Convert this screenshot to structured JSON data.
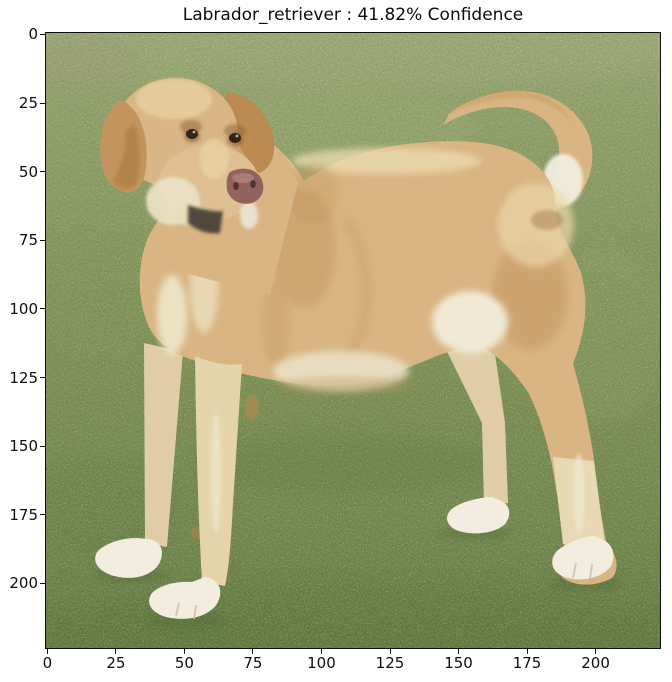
{
  "figure": {
    "title": "Labrador_retriever : 41.82% Confidence"
  },
  "classification": {
    "label": "Labrador_retriever",
    "confidence_percent": "41.82"
  },
  "axes": {
    "x_tick_labels": [
      "0",
      "25",
      "50",
      "75",
      "100",
      "125",
      "150",
      "175",
      "200"
    ],
    "y_tick_labels": [
      "0",
      "25",
      "50",
      "75",
      "100",
      "125",
      "150",
      "175",
      "200"
    ],
    "x_tick_values": [
      0,
      25,
      50,
      75,
      100,
      125,
      150,
      175,
      200
    ],
    "y_tick_values": [
      0,
      25,
      50,
      75,
      100,
      125,
      150,
      175,
      200
    ],
    "data_extent": 224
  },
  "image_content": {
    "description": "Yellow Labrador retriever standing on green grass, body facing left, head turned toward viewer, tail curled up over its back with white underside, white paws and chest",
    "colors": {
      "grass_top": "#9ead79",
      "grass_upper": "#95a26e",
      "grass_mid": "#7f9156",
      "grass_low": "#6d8148",
      "grass_bottom": "#5f7440",
      "grass_patch_light": "#9caa74",
      "grass_patch_dark": "#53702f",
      "grass_haze": "#9f9b79",
      "fur_tan": "#d8b583",
      "fur_tan_dark": "#c39760",
      "fur_cream": "#e8d6ad",
      "fur_pale": "#e0cda7",
      "fur_white": "#f2edde",
      "ear_tan": "#c2955c",
      "ear_tan_dark": "#ba8a50",
      "ear_inner_shadow": "#a97a41",
      "muzzle_tan": "#ddbf91",
      "jowl_white": "#ebe1c5",
      "nose_pink": "#92625f",
      "nose_sheen": "#b2837c",
      "nostril": "#4f3334",
      "mouth_dark": "#4b4339",
      "chin_white": "#e9e4d3",
      "eye_dark": "#352419",
      "spot_brown": "#bb8850",
      "shadow_green": "#46602e",
      "highlight_cream": "#eddeb2"
    }
  }
}
